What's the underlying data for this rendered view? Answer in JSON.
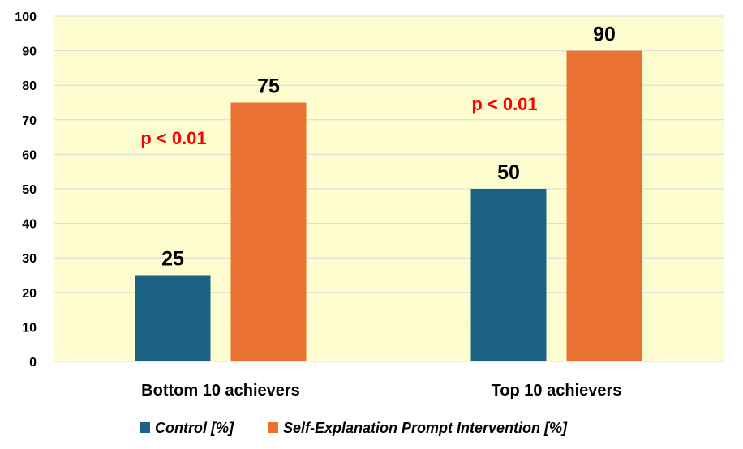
{
  "chart_data": {
    "type": "bar",
    "categories": [
      "Bottom 10 achievers",
      "Top 10 achievers"
    ],
    "series": [
      {
        "name": "Control [%]",
        "values": [
          25,
          50
        ],
        "color": "#1b6283"
      },
      {
        "name": "Self-Explanation Prompt Intervention [%]",
        "values": [
          75,
          90
        ],
        "color": "#e97132"
      }
    ],
    "ylim": [
      0,
      100
    ],
    "yticks": [
      0,
      10,
      20,
      30,
      40,
      50,
      60,
      70,
      80,
      90,
      100
    ],
    "grid": true,
    "legend": "bottom",
    "plot_background": "#fefdd0",
    "annotations": [
      {
        "text": "p < 0.01",
        "category": "Bottom 10 achievers",
        "color": "#ff0000"
      },
      {
        "text": "p < 0.01",
        "category": "Top 10 achievers",
        "color": "#ff0000"
      }
    ]
  }
}
